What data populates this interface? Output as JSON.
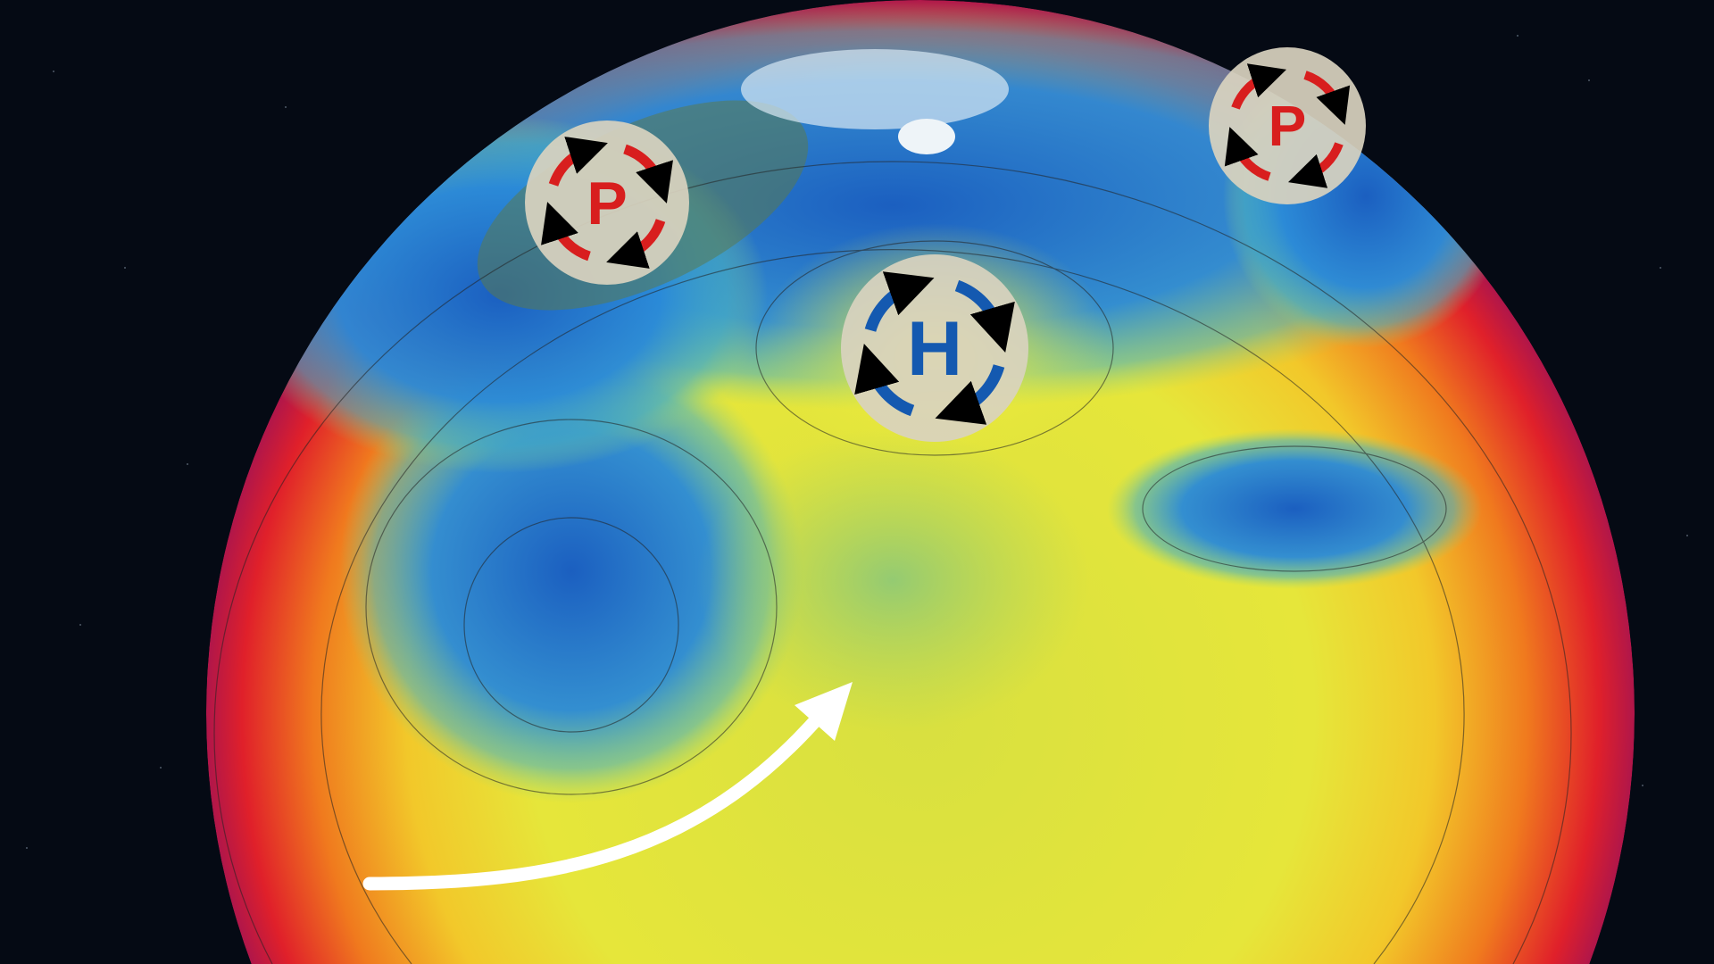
{
  "map": {
    "background": "starfield",
    "colors": {
      "space": "#050a14",
      "hot": "#e0202a",
      "warm": "#f5a623",
      "mild": "#e8e83a",
      "cool": "#1a78d0",
      "symbol_bg": "#d9d3bf",
      "low_symbol": "#d81e1e",
      "high_symbol": "#1459b0",
      "flow_arrow": "#ffffff"
    },
    "pressure_systems": [
      {
        "type": "low",
        "label": "P",
        "icon": "rotating-arrows-icon"
      },
      {
        "type": "high",
        "label": "H",
        "icon": "rotating-arrows-icon"
      },
      {
        "type": "low",
        "label": "P",
        "icon": "rotating-arrows-icon"
      }
    ],
    "flow_arrow": {
      "icon": "curved-arrow-icon"
    }
  }
}
